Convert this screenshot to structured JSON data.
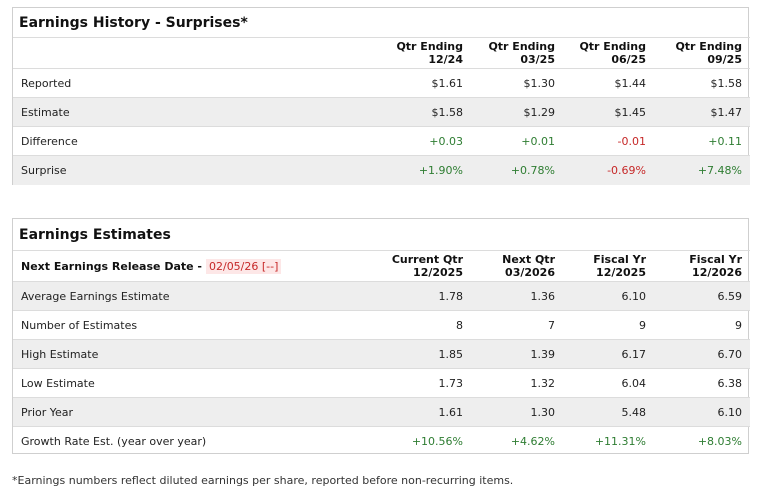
{
  "surprises": {
    "title": "Earnings History - Surprises*",
    "columns": [
      {
        "line1": "Qtr Ending",
        "line2": "12/24"
      },
      {
        "line1": "Qtr Ending",
        "line2": "03/25"
      },
      {
        "line1": "Qtr Ending",
        "line2": "06/25"
      },
      {
        "line1": "Qtr Ending",
        "line2": "09/25"
      }
    ],
    "rows": [
      {
        "label": "Reported",
        "values": [
          "$1.61",
          "$1.30",
          "$1.44",
          "$1.58"
        ]
      },
      {
        "label": "Estimate",
        "values": [
          "$1.58",
          "$1.29",
          "$1.45",
          "$1.47"
        ]
      },
      {
        "label": "Difference",
        "values": [
          "+0.03",
          "+0.01",
          "-0.01",
          "+0.11"
        ]
      },
      {
        "label": "Surprise",
        "values": [
          "+1.90%",
          "+0.78%",
          "-0.69%",
          "+7.48%"
        ]
      }
    ]
  },
  "estimates": {
    "title": "Earnings Estimates",
    "next_release_label": "Next Earnings Release Date -",
    "next_release_date": "02/05/26 [--]",
    "columns": [
      {
        "line1": "Current Qtr",
        "line2": "12/2025"
      },
      {
        "line1": "Next Qtr",
        "line2": "03/2026"
      },
      {
        "line1": "Fiscal Yr",
        "line2": "12/2025"
      },
      {
        "line1": "Fiscal Yr",
        "line2": "12/2026"
      }
    ],
    "rows": [
      {
        "label": "Average Earnings Estimate",
        "values": [
          "1.78",
          "1.36",
          "6.10",
          "6.59"
        ]
      },
      {
        "label": "Number of Estimates",
        "values": [
          "8",
          "7",
          "9",
          "9"
        ]
      },
      {
        "label": "High Estimate",
        "values": [
          "1.85",
          "1.39",
          "6.17",
          "6.70"
        ]
      },
      {
        "label": "Low Estimate",
        "values": [
          "1.73",
          "1.32",
          "6.04",
          "6.38"
        ]
      },
      {
        "label": "Prior Year",
        "values": [
          "1.61",
          "1.30",
          "5.48",
          "6.10"
        ]
      },
      {
        "label": "Growth Rate Est. (year over year)",
        "values": [
          "+10.56%",
          "+4.62%",
          "+11.31%",
          "+8.03%"
        ]
      }
    ]
  },
  "footnote": "*Earnings numbers reflect diluted earnings per share, reported before non-recurring items.",
  "colors": {
    "positive": "#2e7d32",
    "negative": "#c62828",
    "alt_row": "#eeeeee",
    "border": "#cfcfcf"
  }
}
